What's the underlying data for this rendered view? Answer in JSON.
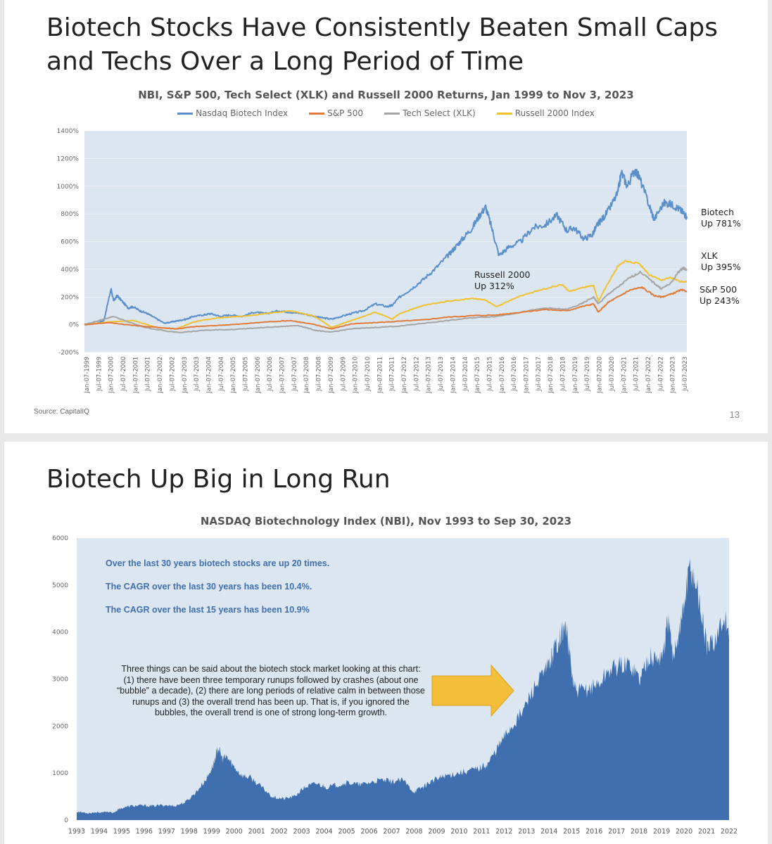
{
  "slide1": {
    "title": "Biotech Stocks Have Consistently Beaten Small Caps and Techs Over a Long Period of Time",
    "source": "Source: CapitalIQ",
    "page_number": "13"
  },
  "slide2": {
    "title": "Biotech Up Big in Long Run",
    "notes": [
      "Over the last 30 years biotech stocks are up 20 times.",
      "The CAGR over the last 30 years has been 10.4%.",
      "The CAGR over the last 15 years has been 10.9%"
    ],
    "callout": "Three things can be said about the biotech stock market looking at this chart: (1) there have been three temporary runups followed by crashes (about one “bubble” a decade), (2) there are long periods of relative calm in between those runups and (3) the overall trend has been up. That is, if you ignored the bubbles, the overall trend is one of strong long-term growth."
  },
  "colors": {
    "nbi": "#5b8fc9",
    "sp500": "#e07b39",
    "xlk": "#a5a5a5",
    "russell": "#f2c12e",
    "plot_bg": "#dce6f1",
    "area": "#3f6fae",
    "arrow": "#f3bf3a",
    "note_text": "#3f6fae"
  },
  "chart_data": [
    {
      "type": "line",
      "title": "NBI, S&P 500, Tech Select (XLK) and Russell 2000 Returns, Jan 1999 to Nov 3, 2023",
      "xlabel": "",
      "ylabel": "",
      "ylim": [
        -200,
        1400
      ],
      "yticks": [
        -200,
        0,
        200,
        400,
        600,
        800,
        1000,
        1200,
        1400
      ],
      "ytick_labels": [
        "-200%",
        "0%",
        "200%",
        "400%",
        "600%",
        "800%",
        "1000%",
        "1200%",
        "1400%"
      ],
      "xlim": [
        1999.0,
        2023.85
      ],
      "xtick_labels": [
        "Jan-07-1999",
        "Jul-07-1999",
        "Jan-07-2000",
        "Jul-07-2000",
        "Jan-07-2001",
        "Jul-07-2001",
        "Jan-07-2002",
        "Jul-07-2002",
        "Jan-07-2003",
        "Jul-07-2003",
        "Jan-07-2004",
        "Jul-07-2004",
        "Jan-07-2005",
        "Jul-07-2005",
        "Jan-07-2006",
        "Jul-07-2006",
        "Jan-07-2007",
        "Jul-07-2007",
        "Jan-07-2008",
        "Jul-07-2008",
        "Jan-07-2009",
        "Jul-07-2009",
        "Jan-07-2010",
        "Jul-07-2010",
        "Jan-07-2011",
        "Jul-07-2011",
        "Jan-07-2012",
        "Jul-07-2012",
        "Jan-07-2013",
        "Jul-07-2013",
        "Jan-07-2014",
        "Jul-07-2014",
        "Jan-07-2015",
        "Jul-07-2015",
        "Jan-07-2016",
        "Jul-07-2016",
        "Jan-07-2017",
        "Jul-07-2017",
        "Jan-07-2018",
        "Jul-07-2018",
        "Jan-07-2019",
        "Jul-07-2019",
        "Jan-07-2020",
        "Jul-07-2020",
        "Jan-07-2021",
        "Jul-07-2021",
        "Jan-07-2022",
        "Jul-07-2022",
        "Jan-07-2023",
        "Jul-07-2023"
      ],
      "series": [
        {
          "name": "Nasdaq Biotech Index",
          "color_key": "nbi",
          "x": [
            1999.0,
            1999.5,
            1999.8,
            2000.1,
            2000.2,
            2000.35,
            2000.5,
            2000.8,
            2001.0,
            2001.3,
            2001.6,
            2001.9,
            2002.3,
            2002.6,
            2002.9,
            2003.2,
            2003.5,
            2003.9,
            2004.2,
            2004.6,
            2005.0,
            2005.5,
            2006.0,
            2006.5,
            2007.0,
            2007.5,
            2008.0,
            2008.5,
            2008.8,
            2009.2,
            2009.6,
            2010.0,
            2010.5,
            2011.0,
            2011.5,
            2011.7,
            2012.0,
            2012.5,
            2013.0,
            2013.5,
            2014.0,
            2014.3,
            2014.6,
            2015.0,
            2015.3,
            2015.55,
            2015.8,
            2016.1,
            2016.5,
            2017.0,
            2017.5,
            2018.0,
            2018.5,
            2018.9,
            2019.2,
            2019.6,
            2019.95,
            2020.15,
            2020.3,
            2020.6,
            2021.0,
            2021.15,
            2021.4,
            2021.7,
            2021.9,
            2022.3,
            2022.5,
            2022.9,
            2023.2,
            2023.5,
            2023.7,
            2023.85
          ],
          "y": [
            0,
            10,
            30,
            260,
            170,
            210,
            180,
            120,
            130,
            100,
            80,
            50,
            10,
            20,
            30,
            40,
            60,
            70,
            80,
            60,
            70,
            60,
            90,
            80,
            100,
            90,
            80,
            60,
            50,
            40,
            60,
            80,
            100,
            150,
            130,
            140,
            200,
            260,
            330,
            410,
            500,
            560,
            620,
            700,
            790,
            850,
            700,
            500,
            560,
            600,
            700,
            720,
            790,
            680,
            700,
            620,
            650,
            720,
            750,
            820,
            950,
            1100,
            1000,
            1120,
            1060,
            860,
            760,
            880,
            870,
            840,
            810,
            781
          ]
        },
        {
          "name": "S&P 500",
          "color_key": "sp500",
          "x": [
            1999.0,
            2000.0,
            2001.0,
            2002.0,
            2002.8,
            2003.5,
            2004.5,
            2005.5,
            2006.5,
            2007.5,
            2008.5,
            2009.2,
            2010.0,
            2011.0,
            2012.0,
            2013.0,
            2014.0,
            2015.0,
            2016.0,
            2017.0,
            2018.0,
            2018.9,
            2019.5,
            2020.0,
            2020.2,
            2020.6,
            2021.0,
            2021.5,
            2022.0,
            2022.5,
            2022.8,
            2023.2,
            2023.6,
            2023.85
          ],
          "y": [
            0,
            15,
            -5,
            -20,
            -30,
            -15,
            -5,
            5,
            20,
            30,
            0,
            -30,
            5,
            15,
            25,
            35,
            55,
            65,
            70,
            90,
            110,
            100,
            130,
            150,
            90,
            160,
            200,
            250,
            270,
            210,
            200,
            220,
            250,
            243
          ]
        },
        {
          "name": "Tech Select (XLK)",
          "color_key": "xlk",
          "x": [
            1999.0,
            1999.8,
            2000.2,
            2000.8,
            2001.5,
            2002.5,
            2003.0,
            2004.0,
            2005.0,
            2006.0,
            2007.0,
            2007.8,
            2008.5,
            2009.1,
            2010.0,
            2011.0,
            2012.0,
            2013.0,
            2014.0,
            2015.0,
            2016.0,
            2017.0,
            2018.0,
            2018.9,
            2019.5,
            2020.0,
            2020.2,
            2020.6,
            2021.0,
            2021.5,
            2021.95,
            2022.5,
            2022.8,
            2023.2,
            2023.5,
            2023.7,
            2023.85
          ],
          "y": [
            0,
            40,
            60,
            20,
            -20,
            -50,
            -55,
            -40,
            -35,
            -25,
            -15,
            -5,
            -40,
            -55,
            -30,
            -20,
            -10,
            10,
            30,
            50,
            60,
            90,
            120,
            110,
            150,
            200,
            150,
            220,
            270,
            340,
            380,
            300,
            260,
            300,
            380,
            410,
            395
          ]
        },
        {
          "name": "Russell 2000 Index",
          "color_key": "russell",
          "x": [
            1999.0,
            2000.0,
            2001.0,
            2002.0,
            2002.8,
            2003.5,
            2004.5,
            2005.5,
            2006.5,
            2007.5,
            2008.5,
            2009.2,
            2010.0,
            2011.0,
            2011.7,
            2012.0,
            2013.0,
            2014.0,
            2015.0,
            2015.5,
            2016.0,
            2016.5,
            2017.0,
            2018.0,
            2018.7,
            2019.0,
            2019.6,
            2020.0,
            2020.2,
            2020.6,
            2021.0,
            2021.3,
            2021.9,
            2022.3,
            2022.8,
            2023.2,
            2023.6,
            2023.85
          ],
          "y": [
            0,
            20,
            30,
            -20,
            -30,
            20,
            50,
            60,
            80,
            100,
            60,
            -20,
            30,
            90,
            40,
            80,
            140,
            170,
            190,
            180,
            130,
            170,
            210,
            260,
            290,
            240,
            270,
            280,
            170,
            300,
            420,
            460,
            440,
            360,
            320,
            340,
            310,
            312
          ]
        }
      ],
      "annotations": [
        {
          "series": "Nasdaq Biotech Index",
          "label": "Biotech",
          "value_label": "Up 781%"
        },
        {
          "series": "Tech Select (XLK)",
          "label": "XLK",
          "value_label": "Up 395%"
        },
        {
          "series": "Russell 2000 Index",
          "label": "Russell 2000",
          "value_label": "Up 312%"
        },
        {
          "series": "S&P 500",
          "label": "S&P 500",
          "value_label": "Up 243%"
        }
      ]
    },
    {
      "type": "area",
      "title": "NASDAQ Biotechnology Index (NBI), Nov 1993 to Sep 30, 2023",
      "xlabel": "",
      "ylabel": "",
      "ylim": [
        0,
        6000
      ],
      "yticks": [
        0,
        1000,
        2000,
        3000,
        4000,
        5000,
        6000
      ],
      "xlim": [
        1993.0,
        2023.0
      ],
      "xtick_labels": [
        "1993",
        "1994",
        "1995",
        "1996",
        "1997",
        "1998",
        "1999",
        "2000",
        "2001",
        "2002",
        "2003",
        "2004",
        "2005",
        "2006",
        "2007",
        "2008",
        "2009",
        "2010",
        "2011",
        "2012",
        "2013",
        "2014",
        "2015",
        "2016",
        "2017",
        "2018",
        "2019",
        "2020",
        "2021",
        "2022"
      ],
      "series": [
        {
          "name": "NBI",
          "color_key": "area",
          "x": [
            1993.0,
            1993.5,
            1994.0,
            1994.7,
            1995.0,
            1995.5,
            1996.0,
            1996.5,
            1997.0,
            1997.5,
            1998.0,
            1998.5,
            1999.0,
            1999.3,
            1999.5,
            1999.7,
            1999.9,
            2000.2,
            2000.6,
            2001.0,
            2001.5,
            2002.0,
            2002.5,
            2003.0,
            2003.5,
            2004.0,
            2004.5,
            2005.0,
            2005.5,
            2006.0,
            2006.5,
            2007.0,
            2007.5,
            2008.0,
            2008.5,
            2008.9,
            2009.2,
            2009.7,
            2010.0,
            2010.5,
            2011.0,
            2011.5,
            2011.9,
            2012.3,
            2012.7,
            2013.0,
            2013.5,
            2014.0,
            2014.5,
            2014.8,
            2015.0,
            2015.3,
            2015.5,
            2015.8,
            2016.0,
            2016.5,
            2017.0,
            2017.5,
            2018.0,
            2018.5,
            2018.9,
            2019.3,
            2019.7,
            2020.0,
            2020.2,
            2020.4,
            2020.7,
            2020.9,
            2021.2,
            2021.5,
            2021.8,
            2022.0,
            2022.4,
            2022.8,
            2023.0
          ],
          "y": [
            180,
            150,
            170,
            160,
            250,
            300,
            310,
            300,
            320,
            300,
            380,
            600,
            900,
            1200,
            1550,
            1300,
            1350,
            1150,
            950,
            900,
            700,
            500,
            450,
            500,
            700,
            780,
            700,
            750,
            800,
            750,
            800,
            850,
            820,
            850,
            600,
            700,
            800,
            900,
            950,
            1000,
            1050,
            1100,
            1200,
            1500,
            1800,
            2000,
            2300,
            2800,
            3100,
            3400,
            3700,
            4000,
            4100,
            3000,
            2700,
            2800,
            2900,
            3200,
            3300,
            3300,
            3000,
            3500,
            3400,
            3600,
            4300,
            3500,
            4000,
            4500,
            5400,
            5000,
            4200,
            3600,
            3900,
            4300,
            3950
          ]
        }
      ]
    }
  ]
}
